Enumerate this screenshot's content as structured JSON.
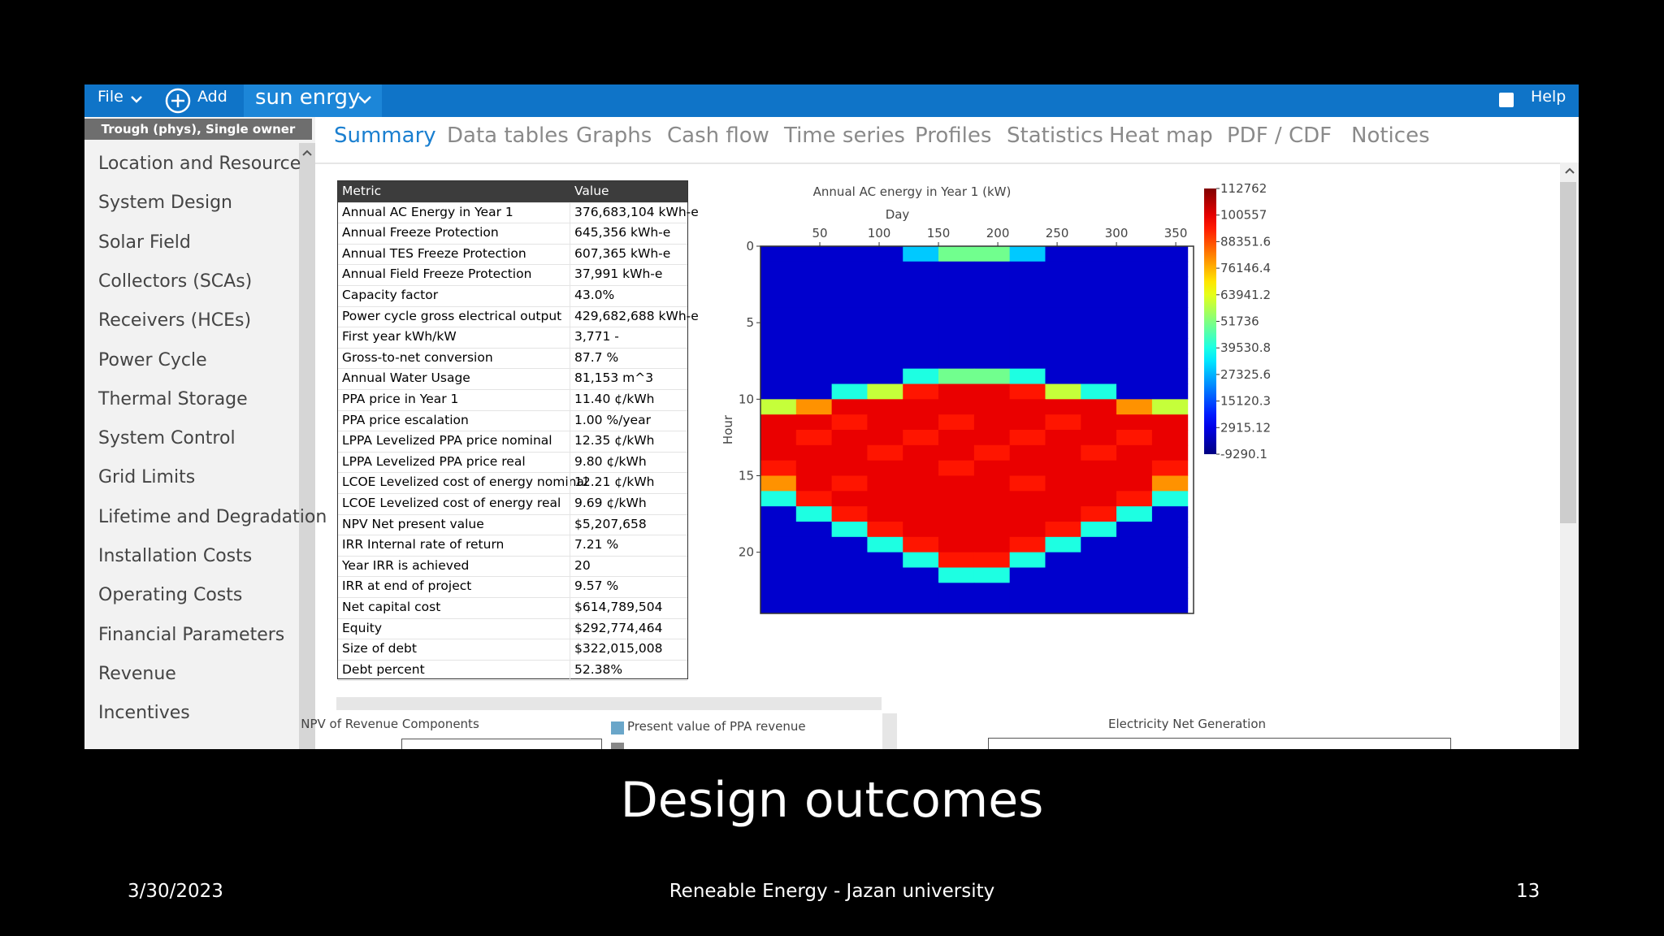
{
  "app": {
    "menu_file": "File",
    "menu_add": "Add",
    "project": "sun enrgy",
    "help": "Help",
    "case": "Trough (phys), Single owner",
    "sidebar": [
      "Location and Resource",
      "System Design",
      "Solar Field",
      "Collectors (SCAs)",
      "Receivers (HCEs)",
      "Power Cycle",
      "Thermal Storage",
      "System Control",
      "Grid Limits",
      "Lifetime and Degradation",
      "Installation Costs",
      "Operating Costs",
      "Financial Parameters",
      "Revenue",
      "Incentives"
    ],
    "tabs": [
      "Summary",
      "Data tables",
      "Graphs",
      "Cash flow",
      "Time series",
      "Profiles",
      "Statistics",
      "Heat map",
      "PDF / CDF",
      "Notices"
    ]
  },
  "summary_table": {
    "header": [
      "Metric",
      "Value"
    ],
    "rows": [
      [
        "Annual AC Energy in Year 1",
        "376,683,104 kWh-e"
      ],
      [
        "Annual Freeze Protection",
        "645,356 kWh-e"
      ],
      [
        "Annual TES Freeze Protection",
        "607,365 kWh-e"
      ],
      [
        "Annual Field Freeze Protection",
        "37,991 kWh-e"
      ],
      [
        "Capacity factor",
        "43.0%"
      ],
      [
        "Power cycle gross electrical output",
        "429,682,688 kWh-e"
      ],
      [
        "First year kWh/kW",
        "3,771 -"
      ],
      [
        "Gross-to-net conversion",
        "87.7 %"
      ],
      [
        "Annual Water Usage",
        "81,153 m^3"
      ],
      [
        "PPA price in Year 1",
        "11.40 ¢/kWh"
      ],
      [
        "PPA price escalation",
        "1.00 %/year"
      ],
      [
        "LPPA Levelized PPA price nominal",
        "12.35 ¢/kWh"
      ],
      [
        "LPPA Levelized PPA price real",
        "9.80 ¢/kWh"
      ],
      [
        "LCOE Levelized cost of energy nominal",
        "12.21 ¢/kWh"
      ],
      [
        "LCOE Levelized cost of energy real",
        "9.69 ¢/kWh"
      ],
      [
        "NPV Net present value",
        "$5,207,658"
      ],
      [
        "IRR Internal rate of return",
        "7.21 %"
      ],
      [
        "Year IRR is achieved",
        "20"
      ],
      [
        "IRR at end of project",
        "9.57 %"
      ],
      [
        "Net capital cost",
        "$614,789,504"
      ],
      [
        "Equity",
        "$292,774,464"
      ],
      [
        "Size of debt",
        "$322,015,008"
      ],
      [
        "Debt percent",
        "52.38%"
      ]
    ]
  },
  "chart_data": {
    "type": "heatmap",
    "title": "Annual AC energy in Year 1 (kW)",
    "x_label": "Day",
    "y_label": "Hour",
    "x": [
      15,
      45,
      75,
      105,
      135,
      165,
      195,
      225,
      255,
      285,
      315,
      345
    ],
    "y": [
      0,
      1,
      2,
      3,
      4,
      5,
      6,
      7,
      8,
      9,
      10,
      11,
      12,
      13,
      14,
      15,
      16,
      17,
      18,
      19,
      20,
      21,
      22,
      23
    ],
    "values": [
      [
        0,
        0,
        0,
        0,
        30000,
        50000,
        50000,
        30000,
        0,
        0,
        0,
        0
      ],
      [
        0,
        0,
        0,
        0,
        0,
        0,
        0,
        0,
        0,
        0,
        0,
        0
      ],
      [
        0,
        0,
        0,
        0,
        0,
        0,
        0,
        0,
        0,
        0,
        0,
        0
      ],
      [
        0,
        0,
        0,
        0,
        0,
        0,
        0,
        0,
        0,
        0,
        0,
        0
      ],
      [
        0,
        0,
        0,
        0,
        0,
        0,
        0,
        0,
        0,
        0,
        0,
        0
      ],
      [
        0,
        0,
        0,
        0,
        0,
        0,
        0,
        0,
        0,
        0,
        0,
        0
      ],
      [
        0,
        0,
        0,
        0,
        0,
        0,
        0,
        0,
        0,
        0,
        0,
        0
      ],
      [
        0,
        0,
        0,
        0,
        0,
        0,
        0,
        0,
        0,
        0,
        0,
        0
      ],
      [
        0,
        0,
        0,
        0,
        40000,
        50000,
        50000,
        40000,
        0,
        0,
        0,
        0
      ],
      [
        0,
        0,
        40000,
        60000,
        95000,
        100000,
        100000,
        95000,
        60000,
        40000,
        0,
        0
      ],
      [
        60000,
        80000,
        100000,
        100000,
        100000,
        100000,
        100000,
        100000,
        100000,
        100000,
        80000,
        60000
      ],
      [
        100000,
        100000,
        95000,
        100000,
        100000,
        95000,
        100000,
        100000,
        95000,
        100000,
        100000,
        100000
      ],
      [
        100000,
        95000,
        100000,
        100000,
        95000,
        100000,
        100000,
        95000,
        100000,
        100000,
        95000,
        100000
      ],
      [
        100000,
        100000,
        100000,
        95000,
        100000,
        100000,
        95000,
        100000,
        100000,
        95000,
        100000,
        100000
      ],
      [
        95000,
        100000,
        100000,
        100000,
        100000,
        95000,
        100000,
        100000,
        100000,
        100000,
        100000,
        95000
      ],
      [
        80000,
        100000,
        95000,
        100000,
        100000,
        100000,
        100000,
        95000,
        100000,
        100000,
        100000,
        80000
      ],
      [
        40000,
        95000,
        100000,
        100000,
        100000,
        100000,
        100000,
        100000,
        100000,
        100000,
        95000,
        40000
      ],
      [
        0,
        40000,
        95000,
        100000,
        100000,
        100000,
        100000,
        100000,
        100000,
        95000,
        40000,
        0
      ],
      [
        0,
        0,
        40000,
        95000,
        100000,
        100000,
        100000,
        100000,
        95000,
        40000,
        0,
        0
      ],
      [
        0,
        0,
        0,
        40000,
        95000,
        100000,
        100000,
        95000,
        40000,
        0,
        0,
        0
      ],
      [
        0,
        0,
        0,
        0,
        40000,
        95000,
        95000,
        40000,
        0,
        0,
        0,
        0
      ],
      [
        0,
        0,
        0,
        0,
        0,
        40000,
        40000,
        0,
        0,
        0,
        0,
        0
      ],
      [
        0,
        0,
        0,
        0,
        0,
        0,
        0,
        0,
        0,
        0,
        0,
        0
      ],
      [
        0,
        0,
        0,
        0,
        0,
        0,
        0,
        0,
        0,
        0,
        0,
        0
      ]
    ],
    "xlim": [
      0,
      365
    ],
    "xticks": [
      50,
      100,
      150,
      200,
      250,
      300,
      350
    ],
    "ylim": [
      0,
      24
    ],
    "y_reversed": true,
    "yticks": [
      0,
      5,
      10,
      15,
      20
    ],
    "colormap": "jet",
    "zlim": [
      -9290.1,
      112762
    ],
    "zticks": [
      112762,
      100557,
      88351.6,
      76146.4,
      63941.2,
      51736,
      39530.8,
      27325.6,
      15120.3,
      2915.12,
      -9290.1
    ]
  },
  "bottom": {
    "npv_title": "NPV of Revenue Components",
    "npv_legend": "Present value of PPA revenue",
    "generation_title": "Electricity Net Generation"
  },
  "slide": {
    "title": "Design outcomes",
    "date": "3/30/2023",
    "footer": "Reneable Energy - Jazan university",
    "page": "13"
  }
}
